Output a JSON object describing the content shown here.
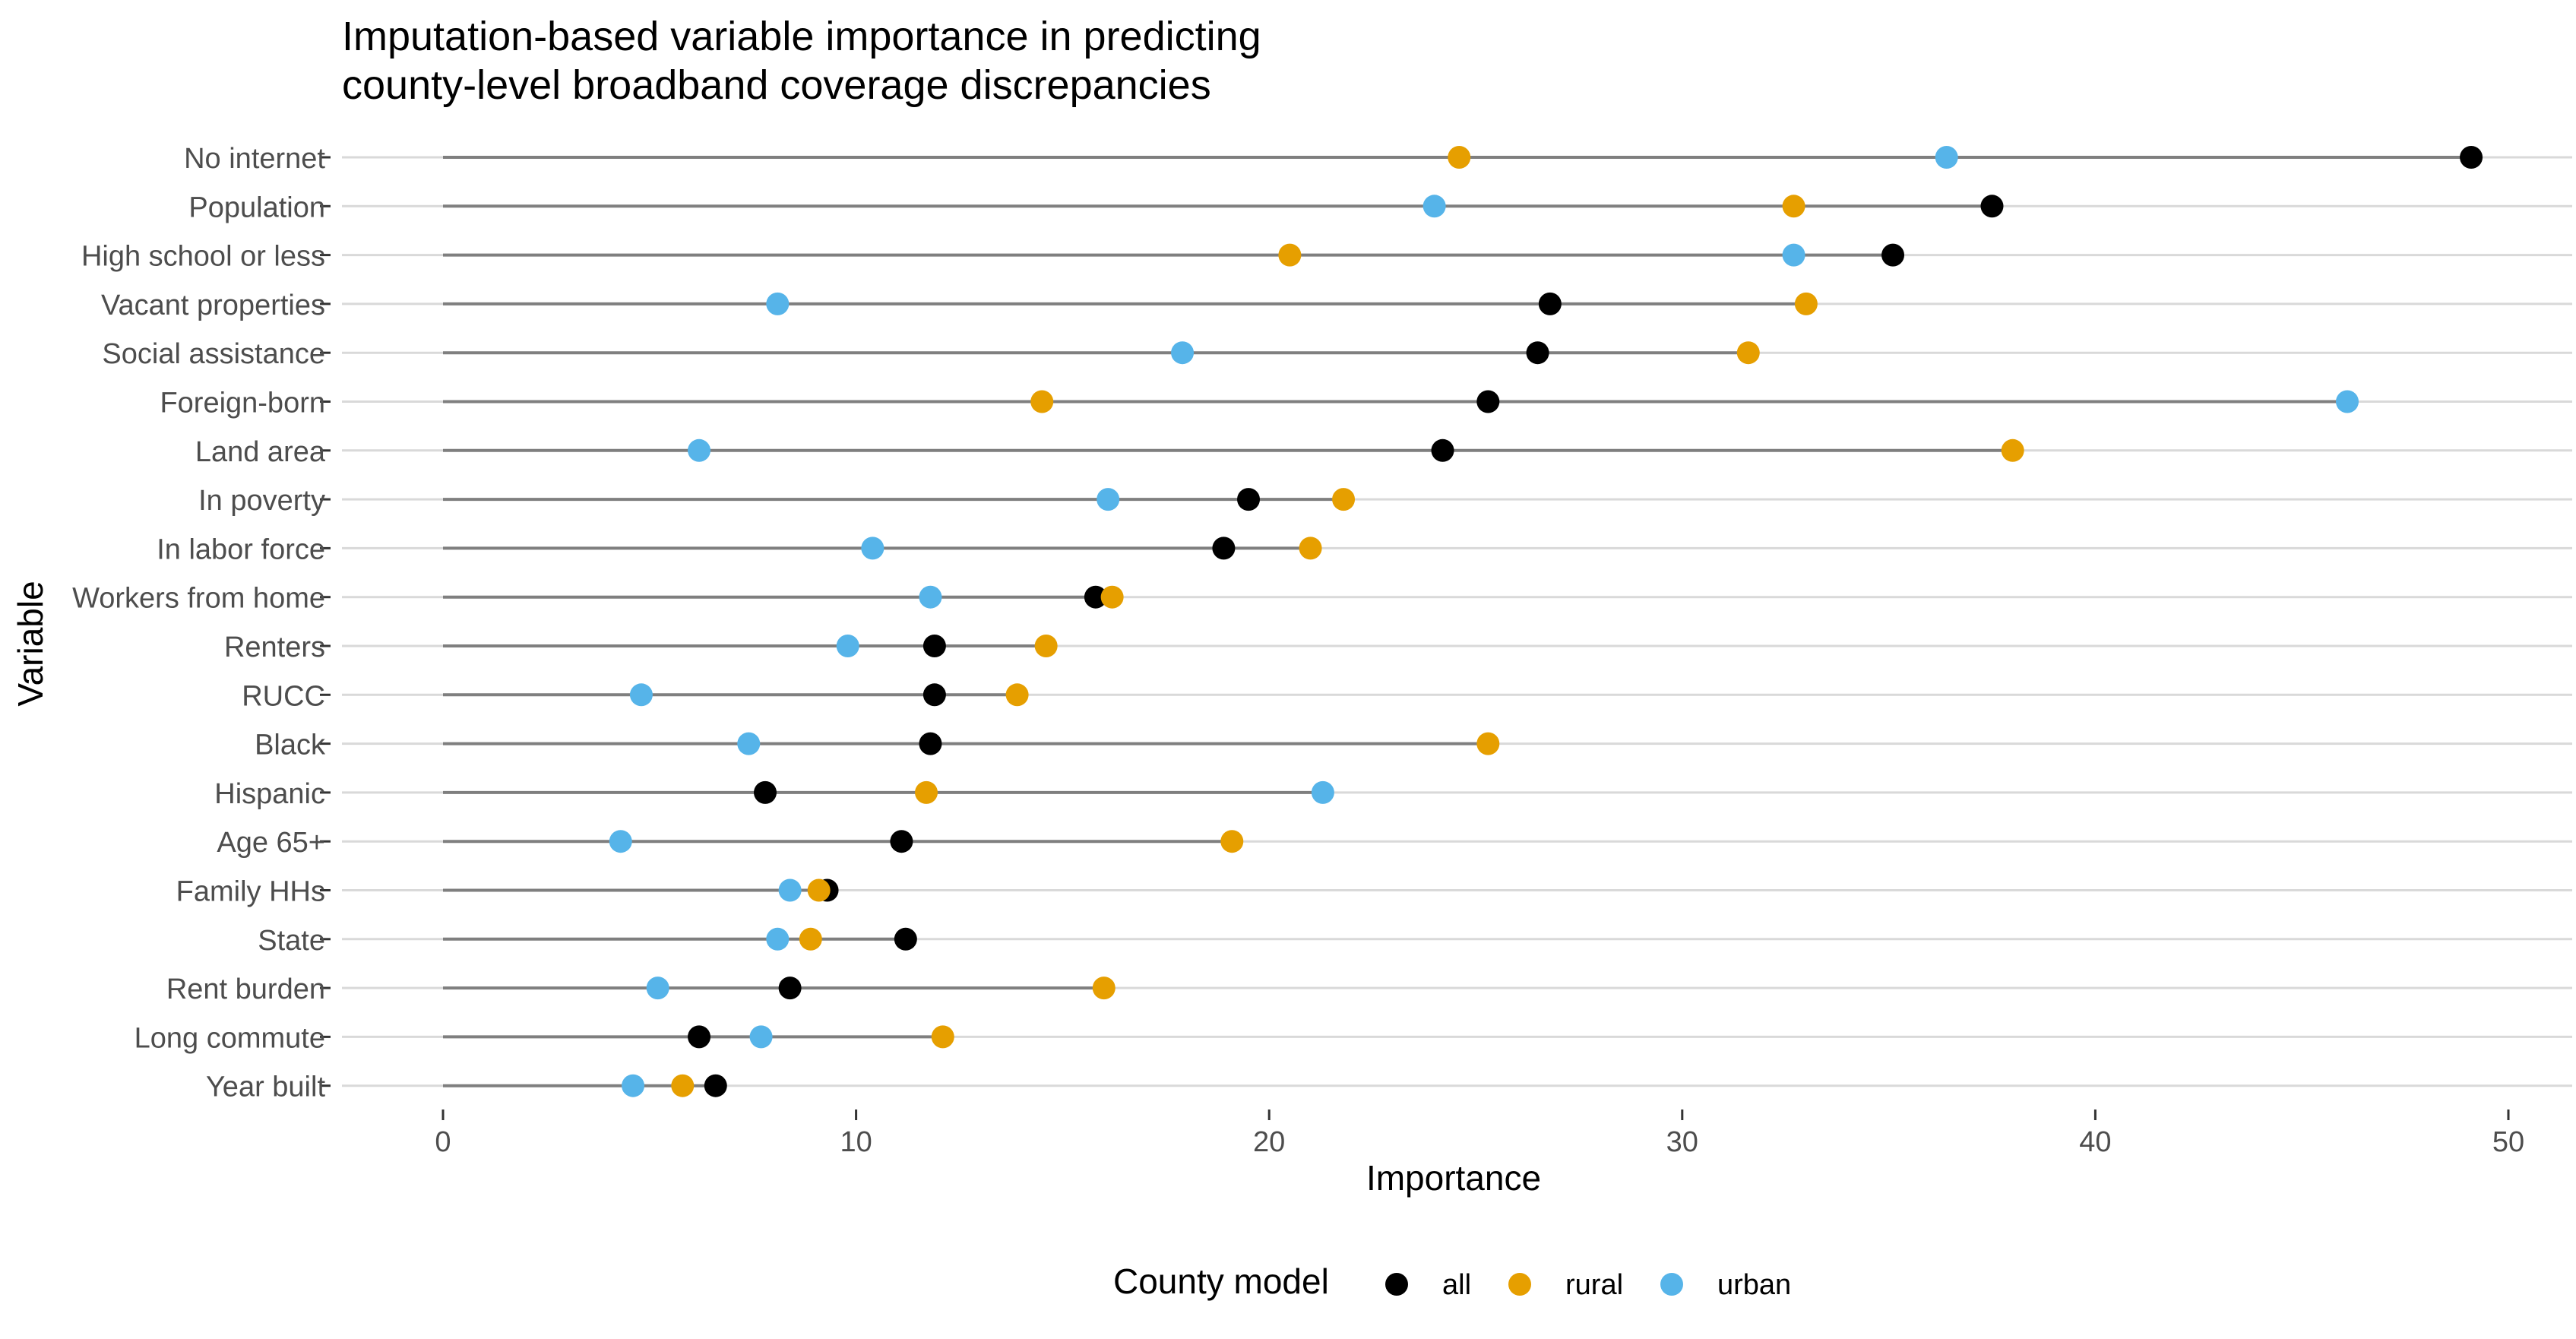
{
  "chart_data": {
    "type": "scatter",
    "title": "Imputation-based variable importance in predicting county-level broadband coverage discrepancies",
    "title_lines": [
      "Imputation-based variable importance in predicting",
      "county-level broadband coverage discrepancies"
    ],
    "xlabel": "Importance",
    "ylabel": "Variable",
    "xlim": [
      -2.5,
      51.5
    ],
    "x_ticks": [
      0,
      10,
      20,
      30,
      40,
      50
    ],
    "x_tick_labels": [
      "0",
      "10",
      "20",
      "30",
      "40",
      "50"
    ],
    "grid": true,
    "legend": {
      "title": "County model",
      "position": "bottom",
      "entries": [
        {
          "name": "all",
          "color": "#000000"
        },
        {
          "name": "rural",
          "color": "#E69F00"
        },
        {
          "name": "urban",
          "color": "#56B4E9"
        }
      ]
    },
    "categories": [
      "No internet",
      "Population",
      "High school or less",
      "Vacant properties",
      "Social assistance",
      "Foreign-born",
      "Land area",
      "In poverty",
      "In labor force",
      "Workers from home",
      "Renters",
      "RUCC",
      "Black",
      "Hispanic",
      "Age 65+",
      "Family HHs",
      "State",
      "Rent burden",
      "Long commute",
      "Year built"
    ],
    "series": [
      {
        "name": "all",
        "color": "#000000",
        "values": [
          49.1,
          37.5,
          35.1,
          26.8,
          26.5,
          25.3,
          24.2,
          19.5,
          18.9,
          15.8,
          11.9,
          11.9,
          11.8,
          7.8,
          11.1,
          9.3,
          11.2,
          8.4,
          6.2,
          6.6
        ]
      },
      {
        "name": "rural",
        "color": "#E69F00",
        "values": [
          24.6,
          32.7,
          20.5,
          33.0,
          31.6,
          14.5,
          38.0,
          21.8,
          21.0,
          16.2,
          14.6,
          13.9,
          25.3,
          11.7,
          19.1,
          9.1,
          8.9,
          16.0,
          12.1,
          5.8
        ]
      },
      {
        "name": "urban",
        "color": "#56B4E9",
        "values": [
          36.4,
          24.0,
          32.7,
          8.1,
          17.9,
          46.1,
          6.2,
          16.1,
          10.4,
          11.8,
          9.8,
          4.8,
          7.4,
          21.3,
          4.3,
          8.4,
          8.1,
          5.2,
          7.7,
          4.6
        ]
      }
    ]
  }
}
